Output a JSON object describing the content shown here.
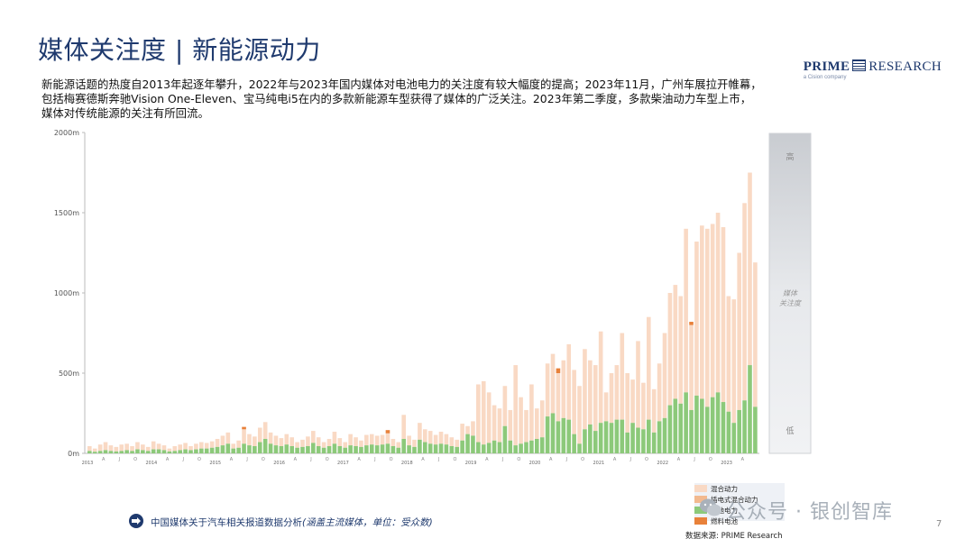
{
  "header": {
    "title": "媒体关注度 | 新能源动力",
    "logo_main": "PRIME",
    "logo_right": "RESEARCH",
    "logo_sub": "a Cision company"
  },
  "description": [
    "新能源话题的热度自2013年起逐年攀升，2022年与2023年国内媒体对电池电力的关注度有较大幅度的提高；2023年11月，广州车展拉开帷幕，",
    "包括梅赛德斯奔驰Vision One-Eleven、宝马纯电i5在内的多款新能源车型获得了媒体的广泛关注。2023年第二季度，多款柴油动力车型上市，",
    "媒体对传统能源的关注有所回流。"
  ],
  "chart_data": {
    "type": "bar",
    "stacked": true,
    "ylim": [
      0,
      2000
    ],
    "y_ticks": [
      "0m",
      "500m",
      "1000m",
      "1500m",
      "2000m"
    ],
    "y_tick_values": [
      0,
      500,
      1000,
      1500,
      2000
    ],
    "x_year_labels": [
      "2013",
      "2014",
      "2015",
      "2016",
      "2017",
      "2018",
      "2019",
      "2020",
      "2021",
      "2022",
      "2023"
    ],
    "x_quarter_labels": [
      "A",
      "J",
      "O"
    ],
    "grid": false,
    "legend_position": "bottom-right",
    "side_scale": {
      "high": "高",
      "middle": "媒体\n关注度",
      "low": "低"
    },
    "series": [
      {
        "name": "混合动力",
        "color": "#f9d9c4"
      },
      {
        "name": "插电式混合动力",
        "color": "#f2b98f"
      },
      {
        "name": "电池电力",
        "color": "#8cc97a"
      },
      {
        "name": "燃料电池",
        "color": "#e8813a"
      }
    ],
    "totals": [
      45,
      30,
      55,
      70,
      50,
      40,
      55,
      60,
      45,
      70,
      55,
      40,
      75,
      60,
      50,
      30,
      45,
      55,
      65,
      45,
      60,
      70,
      65,
      75,
      90,
      110,
      130,
      60,
      80,
      150,
      120,
      105,
      160,
      195,
      130,
      110,
      95,
      120,
      100,
      70,
      85,
      105,
      140,
      100,
      70,
      90,
      135,
      95,
      70,
      120,
      100,
      80,
      115,
      120,
      110,
      115,
      125,
      90,
      70,
      240,
      110,
      85,
      190,
      150,
      140,
      115,
      135,
      120,
      100,
      85,
      185,
      170,
      200,
      430,
      450,
      380,
      300,
      280,
      420,
      270,
      550,
      350,
      270,
      430,
      280,
      330,
      560,
      620,
      500,
      580,
      680,
      520,
      420,
      650,
      580,
      550,
      760,
      380,
      500,
      550,
      750,
      500,
      460,
      700,
      440,
      850,
      400,
      560,
      750,
      1000,
      1050,
      980,
      1400,
      800,
      1320,
      1420,
      1400,
      1430,
      1500,
      1410,
      980,
      960,
      1250,
      1560,
      1750,
      1190
    ],
    "green": [
      15,
      10,
      15,
      20,
      15,
      12,
      15,
      20,
      15,
      25,
      20,
      15,
      25,
      25,
      20,
      12,
      15,
      20,
      25,
      20,
      25,
      30,
      30,
      35,
      40,
      50,
      60,
      30,
      35,
      60,
      50,
      45,
      70,
      90,
      60,
      50,
      45,
      55,
      45,
      35,
      40,
      45,
      65,
      45,
      35,
      45,
      60,
      45,
      35,
      50,
      45,
      40,
      50,
      55,
      50,
      55,
      60,
      45,
      35,
      90,
      50,
      40,
      85,
      70,
      60,
      55,
      60,
      55,
      45,
      40,
      80,
      120,
      110,
      70,
      55,
      65,
      80,
      70,
      170,
      80,
      50,
      60,
      70,
      80,
      90,
      100,
      230,
      250,
      200,
      220,
      210,
      120,
      60,
      150,
      180,
      140,
      190,
      200,
      190,
      210,
      210,
      130,
      190,
      160,
      150,
      210,
      130,
      200,
      220,
      300,
      340,
      310,
      380,
      270,
      360,
      340,
      290,
      350,
      380,
      320,
      260,
      190,
      270,
      330,
      550,
      290
    ],
    "fuel_peaks": [
      {
        "index": 29,
        "value": 15
      },
      {
        "index": 56,
        "value": 20
      },
      {
        "index": 88,
        "value": 30
      },
      {
        "index": 113,
        "value": 20
      }
    ]
  },
  "legend": [
    "混合动力",
    "插电式混合动力",
    "电池电力",
    "燃料电池"
  ],
  "footer": {
    "text": "中国媒体关于汽车相关报道数据分析",
    "text_italic": "(涵盖主流媒体，单位：受众数)",
    "source": "数据来源: PRIME Research",
    "page": "7"
  },
  "watermark": "公众号 · 银创智库"
}
